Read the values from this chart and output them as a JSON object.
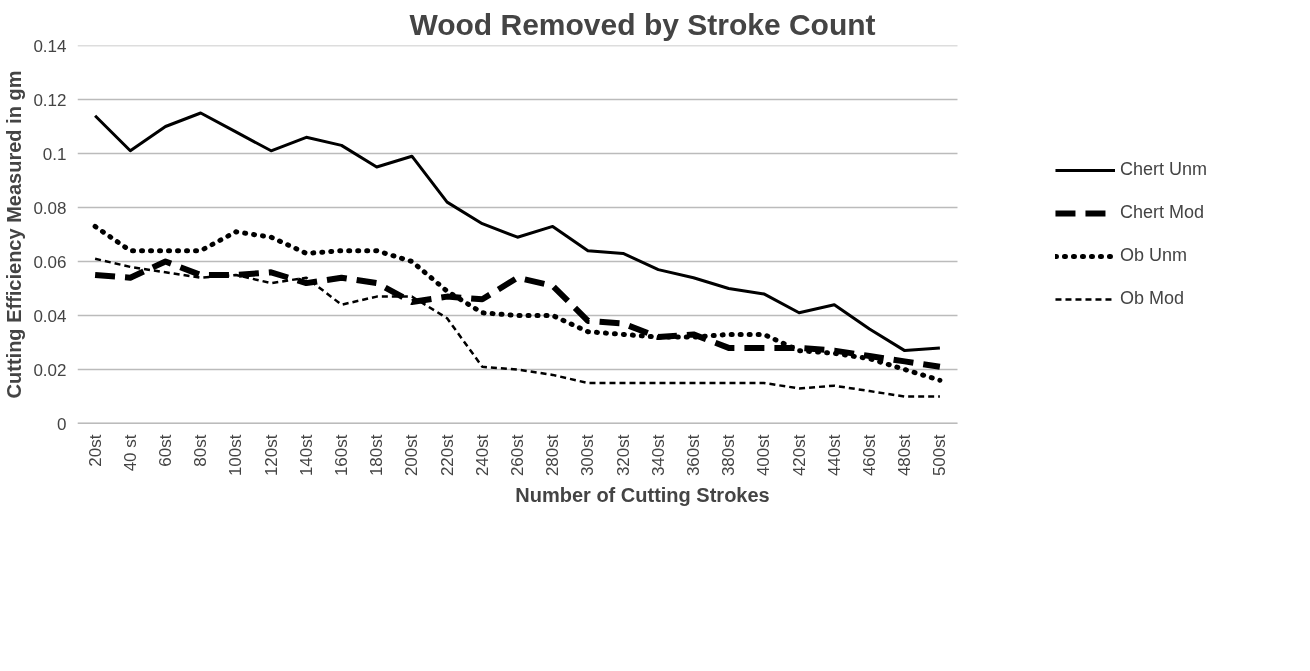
{
  "chart_data": {
    "type": "line",
    "title": "Wood Removed by Stroke Count",
    "xlabel": "Number of Cutting Strokes",
    "ylabel": "Cutting Efficiency Measured in gm",
    "categories": [
      "20st",
      "40 st",
      "60st",
      "80st",
      "100st",
      "120st",
      "140st",
      "160st",
      "180st",
      "200st",
      "220st",
      "240st",
      "260st",
      "280st",
      "300st",
      "320st",
      "340st",
      "360st",
      "380st",
      "400st",
      "420st",
      "440st",
      "460st",
      "480st",
      "500st"
    ],
    "series": [
      {
        "name": "Chert Unm",
        "color": "#000000",
        "line_style": "solid",
        "values": [
          0.114,
          0.101,
          0.11,
          0.115,
          0.108,
          0.101,
          0.106,
          0.103,
          0.095,
          0.099,
          0.082,
          0.074,
          0.069,
          0.073,
          0.064,
          0.063,
          0.057,
          0.054,
          0.05,
          0.048,
          0.041,
          0.044,
          0.035,
          0.027,
          0.028
        ]
      },
      {
        "name": "Chert Mod",
        "color": "#000000",
        "line_style": "dashed",
        "values": [
          0.055,
          0.054,
          0.06,
          0.055,
          0.055,
          0.056,
          0.052,
          0.054,
          0.052,
          0.045,
          0.047,
          0.046,
          0.054,
          0.051,
          0.038,
          0.037,
          0.032,
          0.033,
          0.028,
          0.028,
          0.028,
          0.027,
          0.025,
          0.023,
          0.021
        ]
      },
      {
        "name": "Ob Unm",
        "color": "#000000",
        "line_style": "dotted",
        "values": [
          0.073,
          0.064,
          0.064,
          0.064,
          0.071,
          0.069,
          0.063,
          0.064,
          0.064,
          0.06,
          0.049,
          0.041,
          0.04,
          0.04,
          0.034,
          0.033,
          0.032,
          0.032,
          0.033,
          0.033,
          0.027,
          0.026,
          0.024,
          0.02,
          0.016
        ]
      },
      {
        "name": "Ob Mod",
        "color": "#000000",
        "line_style": "dashed",
        "values": [
          0.061,
          0.058,
          0.056,
          0.054,
          0.055,
          0.052,
          0.054,
          0.044,
          0.047,
          0.047,
          0.039,
          0.021,
          0.02,
          0.018,
          0.015,
          0.015,
          0.015,
          0.015,
          0.015,
          0.015,
          0.013,
          0.014,
          0.012,
          0.01,
          0.01
        ]
      }
    ],
    "ylim": [
      0,
      0.14
    ],
    "yticks": [
      0,
      {
        "value": 0.02,
        "label": "0.02"
      },
      {
        "value": 0.04,
        "label": "0.04"
      },
      {
        "value": 0.06,
        "label": "0.06"
      },
      {
        "value": 0.08,
        "label": "0.08"
      },
      {
        "value": 0.1,
        "label": "0.1"
      },
      {
        "value": 0.12,
        "label": "0.12"
      },
      {
        "value": 0.14,
        "label": "0.14"
      }
    ],
    "grid": "y",
    "legend": "right",
    "marker": "none"
  }
}
